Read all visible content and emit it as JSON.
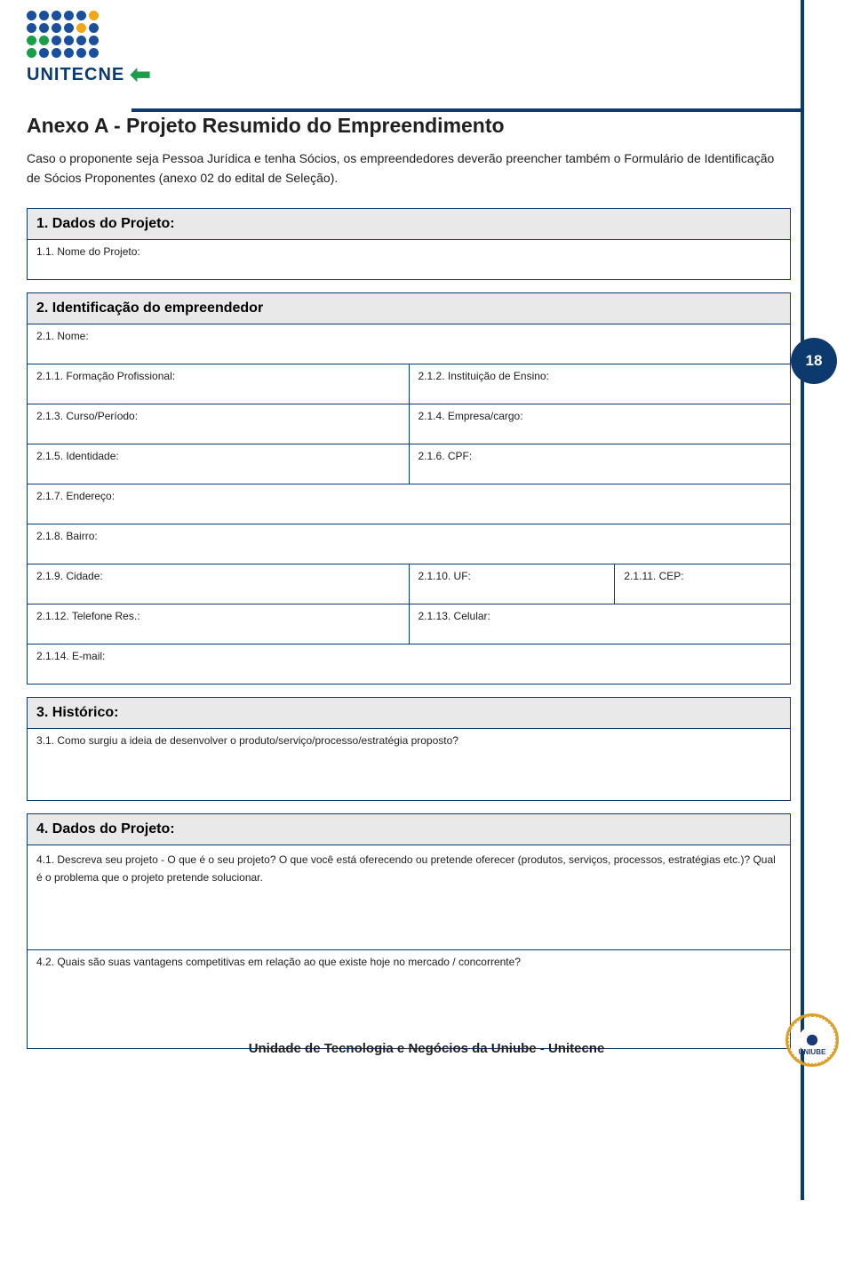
{
  "logo": {
    "text": "UNITECNE",
    "dot_colors": [
      "#1b4f9c",
      "#1b4f9c",
      "#1b4f9c",
      "#1b4f9c",
      "#1b4f9c",
      "#f0a818",
      "#1b4f9c",
      "#1b4f9c",
      "#1b4f9c",
      "#1b4f9c",
      "#f0a818",
      "#1b4f9c",
      "#1b9e4a",
      "#1b9e4a",
      "#1b4f9c",
      "#1b4f9c",
      "#1b4f9c",
      "#1b4f9c",
      "#1b9e4a",
      "#1b4f9c",
      "#1b4f9c",
      "#1b4f9c",
      "#1b4f9c",
      "#1b4f9c"
    ]
  },
  "page_number": "18",
  "title": "Anexo A - Projeto Resumido do Empreendimento",
  "intro": "Caso o proponente seja Pessoa Jurídica e tenha Sócios, os empreendedores deverão preencher também o Formulário de Identificação de Sócios Proponentes (anexo 02 do edital de Seleção).",
  "s1": {
    "header": "1.  Dados do Projeto:",
    "r1": "1.1.     Nome do Projeto:"
  },
  "s2": {
    "header": "2.  Identificação do empreendedor",
    "nome": "2.1.     Nome:",
    "formacao": "2.1.1.     Formação Profissional:",
    "inst": "2.1.2.     Instituição de Ensino:",
    "curso": "2.1.3.     Curso/Período:",
    "empresa": "2.1.4.     Empresa/cargo:",
    "ident": "2.1.5.     Identidade:",
    "cpf": "2.1.6.     CPF:",
    "end": "2.1.7.     Endereço:",
    "bairro": "2.1.8.     Bairro:",
    "cidade": "2.1.9.     Cidade:",
    "uf": "2.1.10.    UF:",
    "cep": "2.1.11.    CEP:",
    "telres": "2.1.12.    Telefone Res.:",
    "cel": "2.1.13.    Celular:",
    "email": "2.1.14.    E-mail:"
  },
  "s3": {
    "header": "3.  Histórico:",
    "q1": "3.1.     Como surgiu a ideia de desenvolver o produto/serviço/processo/estratégia proposto?"
  },
  "s4": {
    "header": "4.  Dados do Projeto:",
    "q1": "4.1.     Descreva seu projeto - O que é o seu projeto? O que você está oferecendo ou pretende oferecer (produtos, serviços, processos, estratégias etc.)? Qual é o problema que o projeto pretende solucionar.",
    "q2": "4.2.     Quais são suas vantagens competitivas em relação ao que existe hoje no mercado / concorrente?"
  },
  "footer": "Unidade de Tecnologia e Negócios da Uniube - Unitecne",
  "seal": "UNIUBE"
}
